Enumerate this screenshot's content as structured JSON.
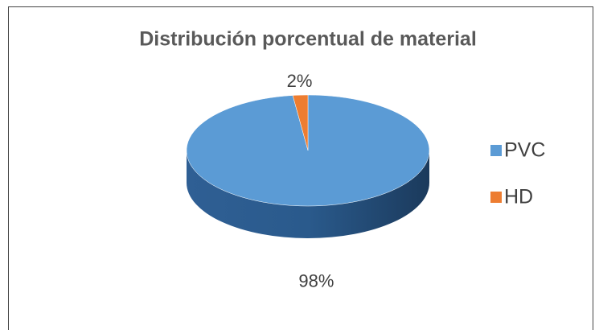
{
  "chart_data": {
    "type": "pie",
    "title": "Distribución porcentual de material",
    "categories": [
      "PVC",
      "HD"
    ],
    "values": [
      98,
      2
    ],
    "value_labels": [
      "98%",
      "2%"
    ],
    "colors": [
      "#5b9bd5",
      "#ed7d31"
    ],
    "legend": "right"
  }
}
